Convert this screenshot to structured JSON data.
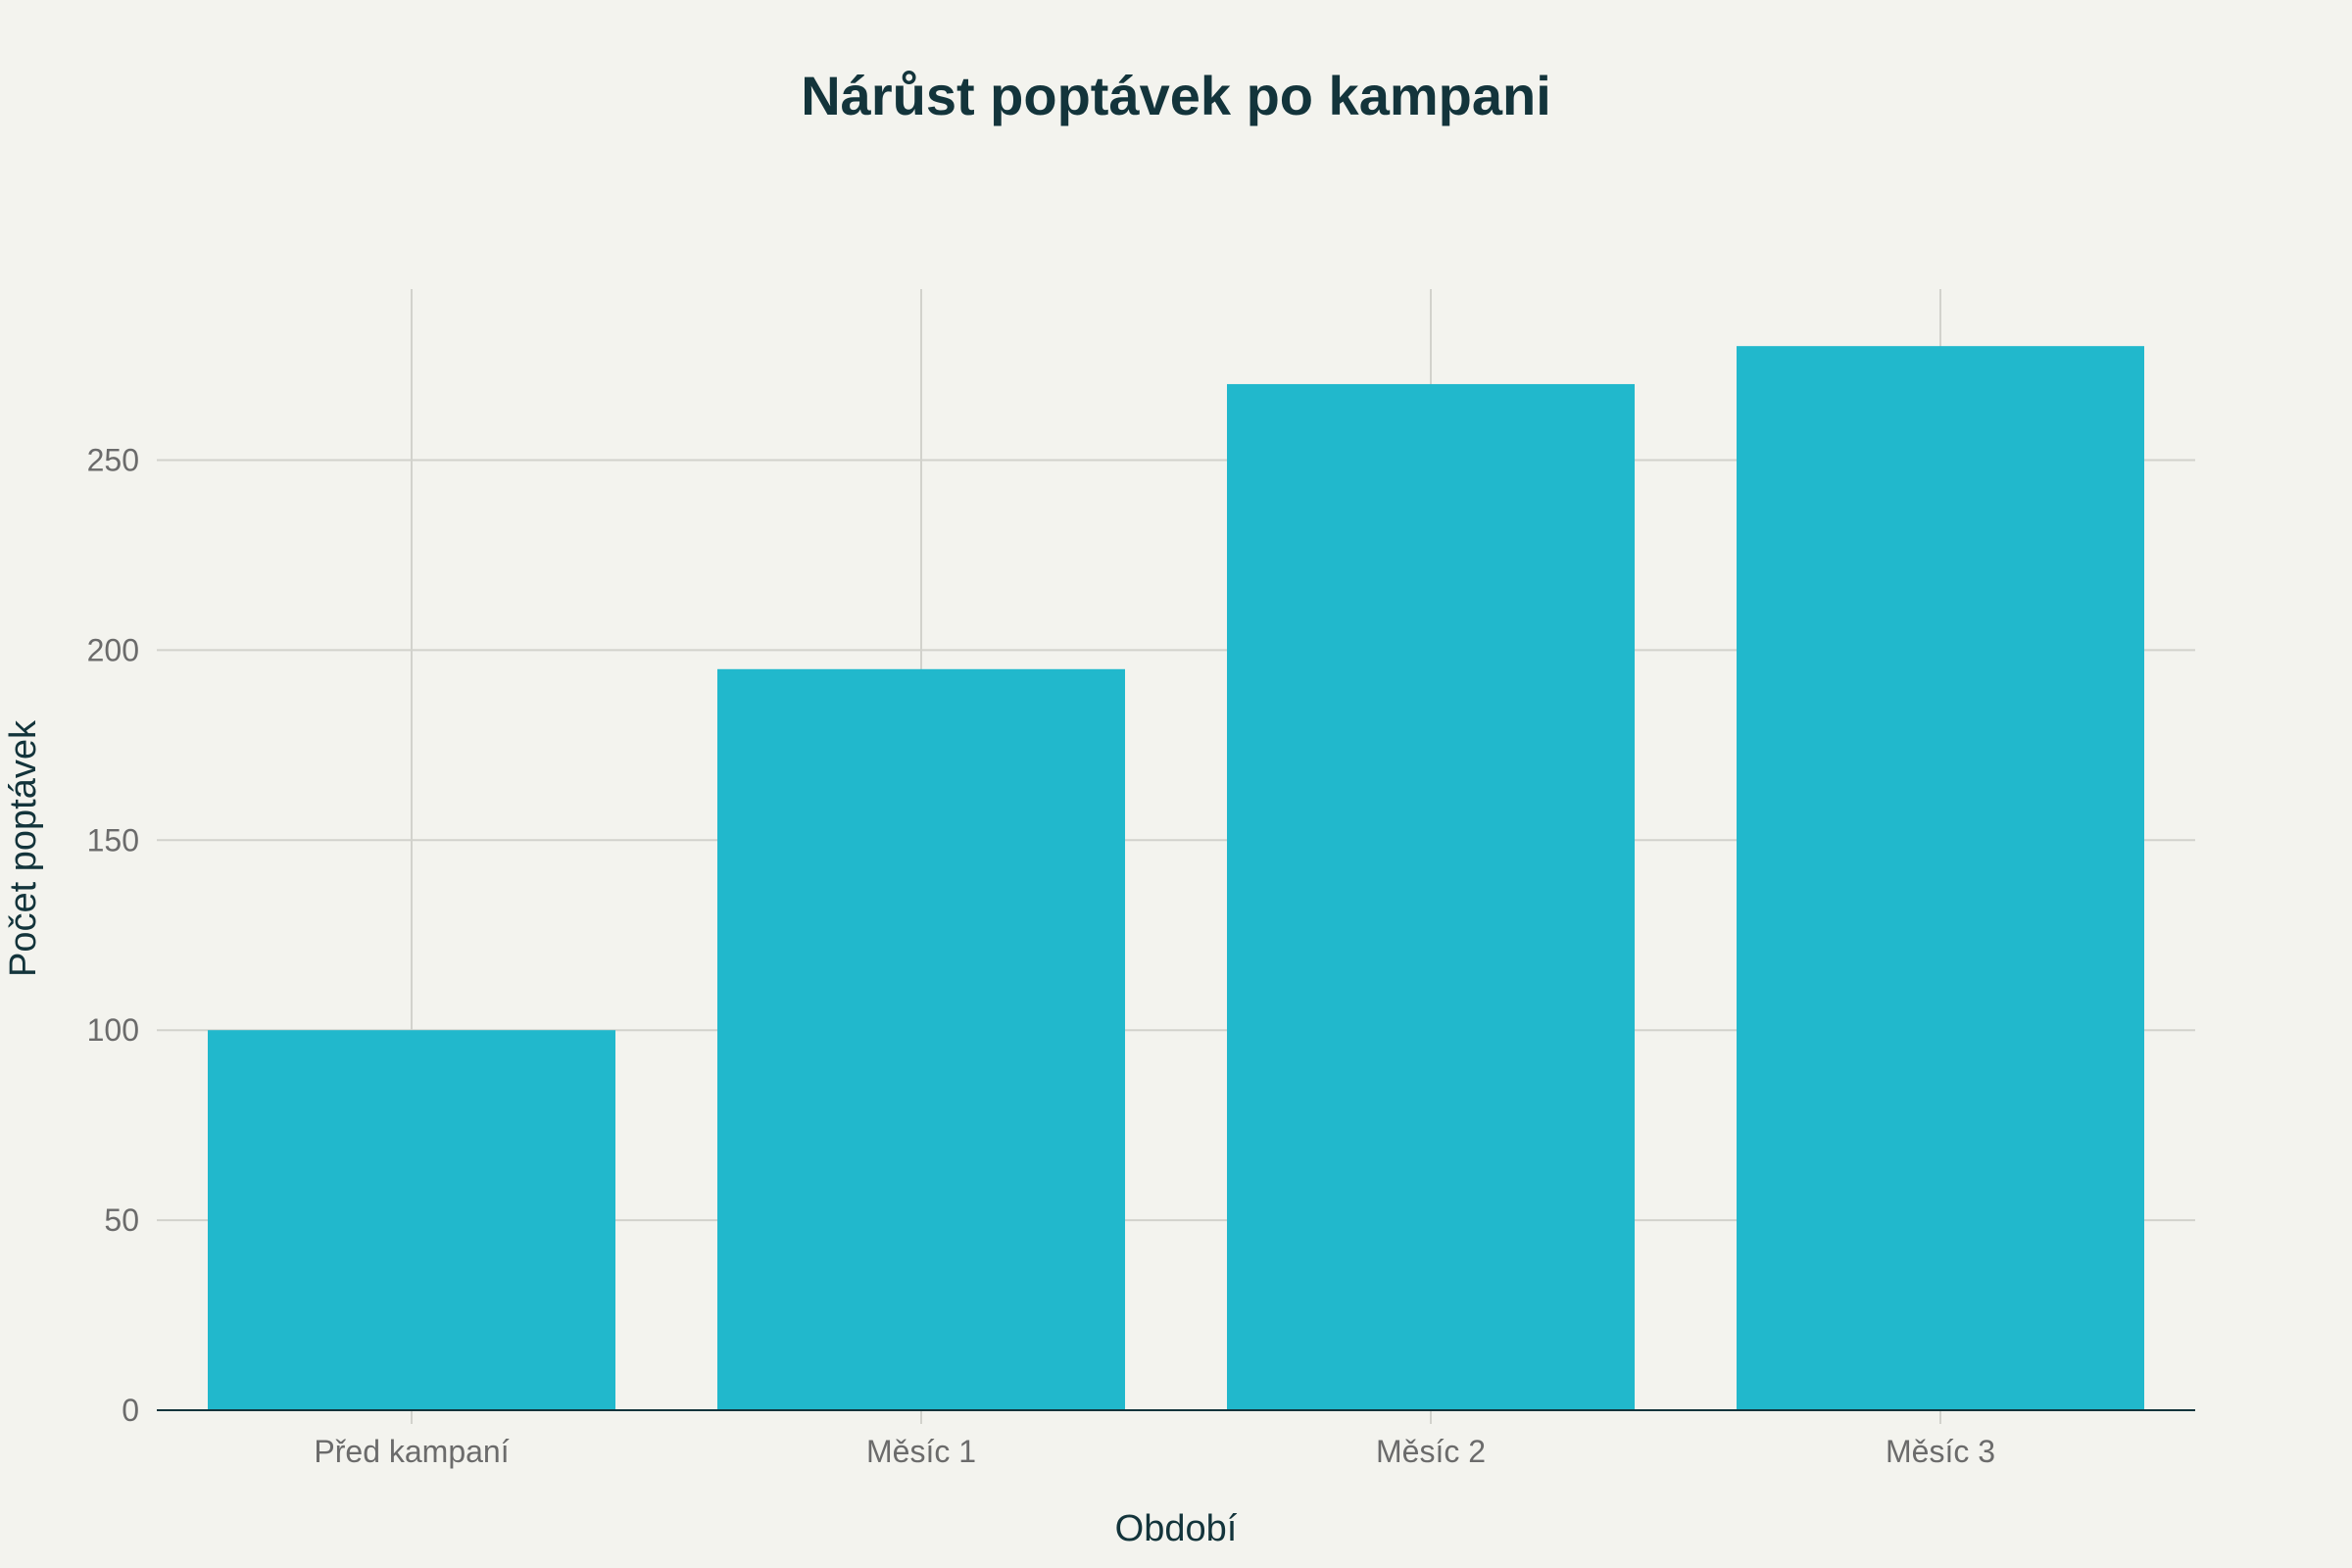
{
  "chart_data": {
    "type": "bar",
    "title": "Nárůst poptávek po kampani",
    "xlabel": "Období",
    "ylabel": "Počet poptávek",
    "categories": [
      "Před kampaní",
      "Měsíc 1",
      "Měsíc 2",
      "Měsíc 3"
    ],
    "values": [
      100,
      195,
      270,
      280
    ],
    "ylim": [
      0,
      295
    ],
    "yticks": [
      0,
      50,
      100,
      150,
      200,
      250
    ],
    "grid": true,
    "legend": "none",
    "colors": {
      "bar": "#21b8cc",
      "background": "#f3f3ee",
      "text": "#13343b"
    }
  }
}
